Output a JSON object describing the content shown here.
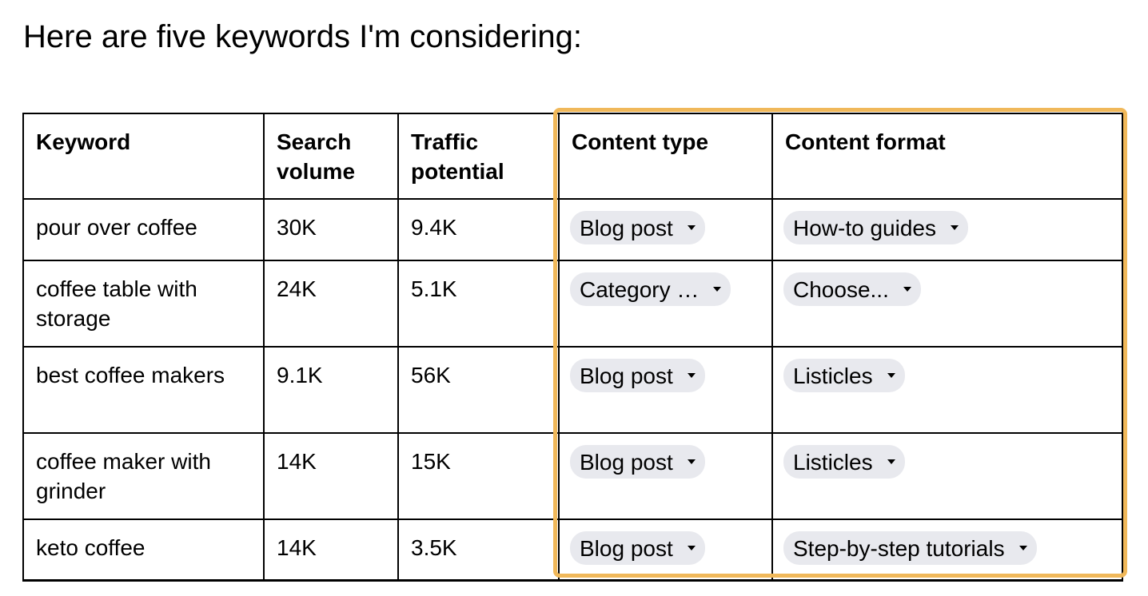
{
  "title": "Here are five keywords I'm considering:",
  "table": {
    "headers": [
      "Keyword",
      "Search volume",
      "Traffic potential",
      "Content type",
      "Content format"
    ],
    "rows": [
      {
        "keyword": "pour over coffee",
        "search_volume": "30K",
        "traffic_potential": "9.4K",
        "content_type": "Blog post",
        "content_format": "How-to guides"
      },
      {
        "keyword": "coffee table with storage",
        "search_volume": "24K",
        "traffic_potential": "5.1K",
        "content_type": "Category …",
        "content_format": "Choose..."
      },
      {
        "keyword": "best coffee makers",
        "search_volume": "9.1K",
        "traffic_potential": "56K",
        "content_type": "Blog post",
        "content_format": "Listicles"
      },
      {
        "keyword": "coffee maker with grinder",
        "search_volume": "14K",
        "traffic_potential": "15K",
        "content_type": "Blog post",
        "content_format": "Listicles"
      },
      {
        "keyword": "keto coffee",
        "search_volume": "14K",
        "traffic_potential": "3.5K",
        "content_type": "Blog post",
        "content_format": "Step-by-step tutorials"
      }
    ]
  },
  "colors": {
    "highlight": "#f0b85a",
    "chip_bg": "#e8e9ee"
  },
  "icons": {
    "dropdown": "caret-down-icon"
  }
}
